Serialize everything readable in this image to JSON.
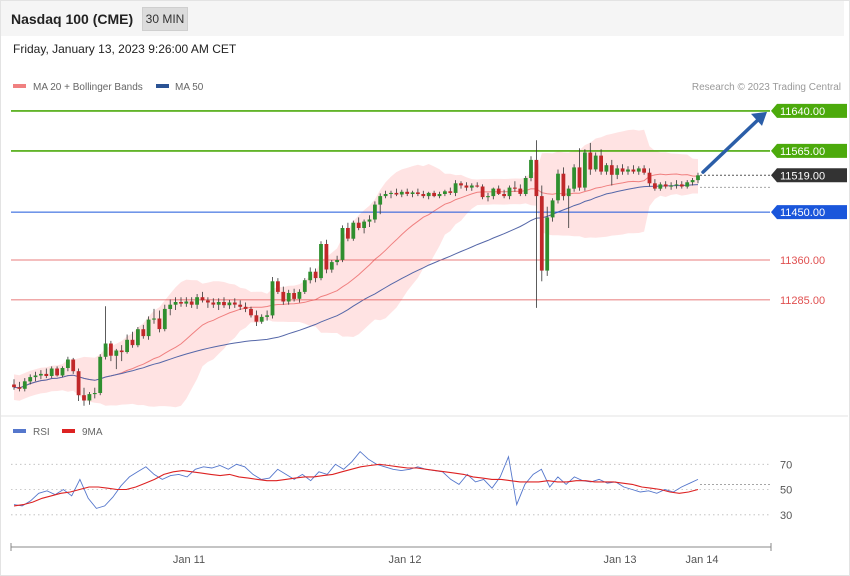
{
  "header": {
    "title": "Nasdaq 100 (CME)",
    "interval": "30 MIN"
  },
  "date_line": "Friday, January 13, 2023 9:26:00 AM CET",
  "copyright": "Research © 2023 Trading Central",
  "colors": {
    "up": "#2f8f2f",
    "down": "#c0282a",
    "ma20": "#f08080",
    "band": "#ffdada",
    "ma50": "#5567a8",
    "resistance": "#4caa0c",
    "support_blue": "#1a56db",
    "support_red": "#e05050",
    "last_price": "#333333",
    "rsi": "#5577cc",
    "rsi_ma": "#dd2222",
    "arrow": "#2b5ea8"
  },
  "chart_data": [
    {
      "type": "line",
      "title": "",
      "legend": [
        {
          "name": "MA 20 + Bollinger Bands",
          "color": "#f08080"
        },
        {
          "name": "MA 50",
          "color": "#2b5394"
        }
      ],
      "x_ticks": [
        "Jan 11",
        "Jan 12",
        "Jan 13",
        "Jan 14"
      ],
      "ylim": [
        11080,
        11700
      ],
      "levels": [
        {
          "value": 11640,
          "label": "11640.00",
          "kind": "resistance"
        },
        {
          "value": 11565,
          "label": "11565.00",
          "kind": "resistance"
        },
        {
          "value": 11519,
          "label": "11519.00",
          "kind": "last"
        },
        {
          "value": 11450,
          "label": "11450.00",
          "kind": "support_blue"
        },
        {
          "value": 11360,
          "label": "11360.00",
          "kind": "support_red"
        },
        {
          "value": 11285,
          "label": "11285.00",
          "kind": "support_red"
        }
      ],
      "candles": [
        [
          11126,
          11136,
          11116,
          11121
        ],
        [
          11121,
          11131,
          11113,
          11118
        ],
        [
          11118,
          11138,
          11113,
          11132
        ],
        [
          11132,
          11145,
          11126,
          11140
        ],
        [
          11140,
          11150,
          11132,
          11143
        ],
        [
          11143,
          11153,
          11136,
          11146
        ],
        [
          11146,
          11156,
          11138,
          11142
        ],
        [
          11142,
          11160,
          11138,
          11156
        ],
        [
          11156,
          11160,
          11141,
          11143
        ],
        [
          11143,
          11160,
          11140,
          11157
        ],
        [
          11157,
          11178,
          11151,
          11173
        ],
        [
          11173,
          11176,
          11146,
          11151
        ],
        [
          11151,
          11156,
          11095,
          11106
        ],
        [
          11106,
          11120,
          11086,
          11096
        ],
        [
          11096,
          11112,
          11088,
          11108
        ],
        [
          11108,
          11120,
          11100,
          11110
        ],
        [
          11110,
          11183,
          11106,
          11178
        ],
        [
          11178,
          11273,
          11173,
          11203
        ],
        [
          11203,
          11208,
          11170,
          11180
        ],
        [
          11180,
          11193,
          11155,
          11190
        ],
        [
          11190,
          11200,
          11170,
          11187
        ],
        [
          11187,
          11220,
          11184,
          11210
        ],
        [
          11210,
          11225,
          11195,
          11200
        ],
        [
          11200,
          11234,
          11196,
          11230
        ],
        [
          11230,
          11238,
          11212,
          11217
        ],
        [
          11217,
          11254,
          11210,
          11248
        ],
        [
          11248,
          11268,
          11240,
          11250
        ],
        [
          11250,
          11265,
          11224,
          11230
        ],
        [
          11230,
          11276,
          11226,
          11268
        ],
        [
          11268,
          11286,
          11256,
          11276
        ],
        [
          11276,
          11290,
          11266,
          11281
        ],
        [
          11281,
          11290,
          11272,
          11278
        ],
        [
          11278,
          11290,
          11272,
          11282
        ],
        [
          11282,
          11290,
          11270,
          11276
        ],
        [
          11276,
          11296,
          11268,
          11290
        ],
        [
          11290,
          11300,
          11280,
          11284
        ],
        [
          11284,
          11290,
          11270,
          11280
        ],
        [
          11280,
          11288,
          11270,
          11276
        ],
        [
          11276,
          11288,
          11266,
          11281
        ],
        [
          11281,
          11290,
          11270,
          11275
        ],
        [
          11275,
          11285,
          11268,
          11280
        ],
        [
          11280,
          11288,
          11270,
          11276
        ],
        [
          11276,
          11284,
          11266,
          11272
        ],
        [
          11272,
          11280,
          11262,
          11268
        ],
        [
          11268,
          11272,
          11252,
          11256
        ],
        [
          11256,
          11265,
          11236,
          11244
        ],
        [
          11244,
          11258,
          11240,
          11253
        ],
        [
          11253,
          11265,
          11246,
          11256
        ],
        [
          11256,
          11328,
          11250,
          11320
        ],
        [
          11320,
          11326,
          11296,
          11300
        ],
        [
          11300,
          11310,
          11276,
          11282
        ],
        [
          11282,
          11304,
          11276,
          11298
        ],
        [
          11298,
          11306,
          11282,
          11287
        ],
        [
          11287,
          11305,
          11280,
          11300
        ],
        [
          11300,
          11326,
          11296,
          11322
        ],
        [
          11322,
          11346,
          11316,
          11338
        ],
        [
          11338,
          11344,
          11318,
          11326
        ],
        [
          11326,
          11395,
          11322,
          11390
        ],
        [
          11390,
          11398,
          11335,
          11342
        ],
        [
          11342,
          11360,
          11336,
          11356
        ],
        [
          11356,
          11368,
          11350,
          11360
        ],
        [
          11360,
          11425,
          11356,
          11420
        ],
        [
          11420,
          11430,
          11395,
          11400
        ],
        [
          11400,
          11434,
          11396,
          11430
        ],
        [
          11430,
          11440,
          11416,
          11420
        ],
        [
          11420,
          11436,
          11410,
          11432
        ],
        [
          11432,
          11444,
          11422,
          11436
        ],
        [
          11436,
          11470,
          11430,
          11464
        ],
        [
          11464,
          11485,
          11446,
          11480
        ],
        [
          11480,
          11490,
          11476,
          11484
        ],
        [
          11484,
          11490,
          11476,
          11486
        ],
        [
          11486,
          11494,
          11480,
          11483
        ],
        [
          11483,
          11492,
          11478,
          11488
        ],
        [
          11488,
          11494,
          11480,
          11484
        ],
        [
          11484,
          11490,
          11478,
          11487
        ],
        [
          11487,
          11494,
          11480,
          11484
        ],
        [
          11484,
          11490,
          11476,
          11480
        ],
        [
          11480,
          11488,
          11474,
          11486
        ],
        [
          11486,
          11490,
          11478,
          11480
        ],
        [
          11480,
          11488,
          11476,
          11484
        ],
        [
          11484,
          11492,
          11480,
          11489
        ],
        [
          11489,
          11496,
          11482,
          11486
        ],
        [
          11486,
          11510,
          11480,
          11504
        ],
        [
          11504,
          11508,
          11494,
          11500
        ],
        [
          11500,
          11506,
          11490,
          11496
        ],
        [
          11496,
          11504,
          11490,
          11500
        ],
        [
          11500,
          11506,
          11496,
          11498
        ],
        [
          11498,
          11502,
          11474,
          11478
        ],
        [
          11478,
          11486,
          11470,
          11480
        ],
        [
          11480,
          11496,
          11474,
          11494
        ],
        [
          11494,
          11500,
          11482,
          11484
        ],
        [
          11484,
          11492,
          11476,
          11480
        ],
        [
          11480,
          11500,
          11474,
          11496
        ],
        [
          11496,
          11508,
          11488,
          11494
        ],
        [
          11494,
          11502,
          11480,
          11484
        ],
        [
          11484,
          11518,
          11480,
          11514
        ],
        [
          11514,
          11555,
          11508,
          11548
        ],
        [
          11548,
          11585,
          11270,
          11480
        ],
        [
          11480,
          11500,
          11320,
          11340
        ],
        [
          11340,
          11460,
          11330,
          11440
        ],
        [
          11440,
          11476,
          11432,
          11472
        ],
        [
          11472,
          11530,
          11466,
          11522
        ],
        [
          11522,
          11534,
          11472,
          11480
        ],
        [
          11480,
          11500,
          11420,
          11494
        ],
        [
          11494,
          11540,
          11488,
          11534
        ],
        [
          11534,
          11570,
          11490,
          11496
        ],
        [
          11496,
          11568,
          11490,
          11562
        ],
        [
          11562,
          11580,
          11520,
          11530
        ],
        [
          11530,
          11562,
          11526,
          11556
        ],
        [
          11556,
          11568,
          11520,
          11526
        ],
        [
          11526,
          11542,
          11520,
          11538
        ],
        [
          11538,
          11548,
          11500,
          11520
        ],
        [
          11520,
          11538,
          11512,
          11532
        ],
        [
          11532,
          11540,
          11520,
          11526
        ],
        [
          11526,
          11536,
          11520,
          11530
        ],
        [
          11530,
          11538,
          11522,
          11526
        ],
        [
          11526,
          11536,
          11520,
          11532
        ],
        [
          11532,
          11538,
          11520,
          11524
        ],
        [
          11524,
          11532,
          11498,
          11504
        ],
        [
          11504,
          11512,
          11490,
          11494
        ],
        [
          11494,
          11506,
          11490,
          11502
        ],
        [
          11502,
          11508,
          11494,
          11498
        ],
        [
          11498,
          11506,
          11492,
          11500
        ],
        [
          11500,
          11510,
          11494,
          11502
        ],
        [
          11502,
          11508,
          11494,
          11498
        ],
        [
          11498,
          11510,
          11494,
          11506
        ],
        [
          11506,
          11514,
          11500,
          11510
        ],
        [
          11510,
          11524,
          11504,
          11519
        ]
      ]
    },
    {
      "type": "line",
      "title": "",
      "legend": [
        {
          "name": "RSI",
          "color": "#5577cc"
        },
        {
          "name": "9MA",
          "color": "#dd2222"
        }
      ],
      "y_ticks": [
        70,
        50,
        30
      ],
      "ylim": [
        10,
        90
      ],
      "series": [
        {
          "key": "rsi",
          "values": [
            38,
            37,
            41,
            47,
            49,
            46,
            50,
            45,
            58,
            43,
            35,
            37,
            44,
            53,
            60,
            64,
            68,
            62,
            58,
            61,
            62,
            60,
            66,
            68,
            67,
            69,
            66,
            70,
            68,
            62,
            58,
            59,
            66,
            62,
            58,
            62,
            57,
            64,
            62,
            70,
            66,
            72,
            80,
            74,
            70,
            68,
            66,
            65,
            66,
            68,
            66,
            65,
            64,
            58,
            54,
            62,
            56,
            58,
            51,
            60,
            76,
            38,
            54,
            62,
            66,
            52,
            60,
            54,
            60,
            57,
            56,
            58,
            55,
            56,
            52,
            50,
            48,
            49,
            47,
            50,
            48,
            52,
            55,
            58
          ]
        },
        {
          "key": "ma",
          "values": [
            37,
            38,
            40,
            43,
            45,
            47,
            48,
            50,
            52,
            52,
            51,
            50,
            50,
            52,
            55,
            58,
            62,
            64,
            65,
            64,
            63,
            62,
            61,
            62,
            60,
            59,
            58,
            57,
            57,
            58,
            59,
            60,
            60,
            61,
            62,
            64,
            66,
            68,
            69,
            70,
            69,
            68,
            67,
            67,
            66,
            65,
            64,
            63,
            62,
            60,
            59,
            58,
            58,
            57,
            56,
            56,
            56,
            57,
            56,
            56,
            57,
            57,
            56,
            56,
            56,
            55,
            54,
            52,
            51,
            50,
            48,
            47,
            48,
            50
          ]
        }
      ]
    }
  ]
}
